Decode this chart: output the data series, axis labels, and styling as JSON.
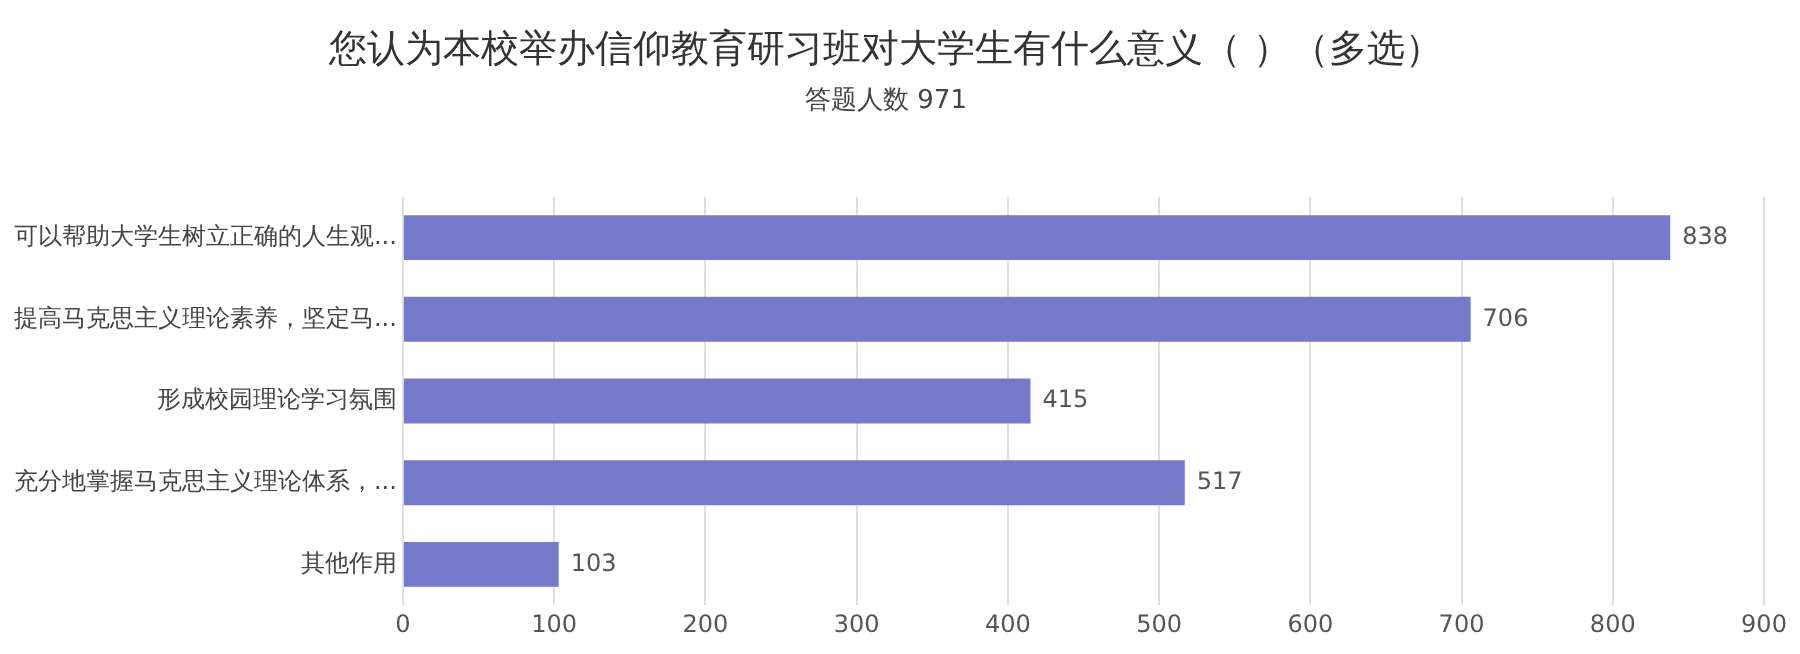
{
  "chart_data": {
    "type": "bar",
    "orientation": "horizontal",
    "title": "您认为本校举办信仰教育研习班对大学生有什么意义（ ）（多选）",
    "subtitle": "答题人数 971",
    "categories": [
      "可以帮助大学生树立正确的人生观...",
      "提高马克思主义理论素养，坚定马...",
      "形成校园理论学习氛围",
      "充分地掌握马克思主义理论体系，...",
      "其他作用"
    ],
    "values": [
      838,
      706,
      415,
      517,
      103
    ],
    "color": "#7479cb",
    "xlim": [
      0,
      900
    ],
    "xticks": [
      0,
      100,
      200,
      300,
      400,
      500,
      600,
      700,
      800,
      900
    ],
    "grid": "x",
    "data_labels": true,
    "legend": false
  }
}
